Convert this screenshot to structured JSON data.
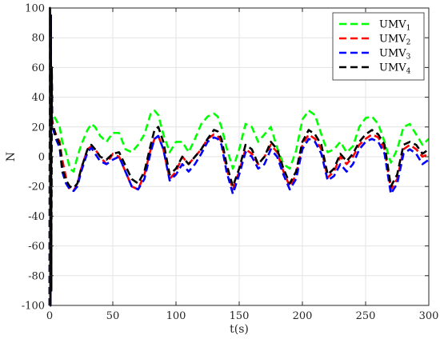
{
  "chart_data": {
    "type": "line",
    "title": "",
    "xlabel": "t(s)",
    "ylabel": "N",
    "xlim": [
      0,
      300
    ],
    "ylim": [
      -100,
      100
    ],
    "xticks": [
      0,
      50,
      100,
      150,
      200,
      250,
      300
    ],
    "yticks": [
      -100,
      -80,
      -60,
      -40,
      -20,
      0,
      20,
      40,
      60,
      80,
      100
    ],
    "grid": true,
    "legend_position": "top-right",
    "line_style": "dashed",
    "series": [
      {
        "name": "UMV",
        "subscript": "1",
        "color": "#00ff00",
        "x": [
          0,
          0.3,
          0.7,
          1.0,
          1.3,
          1.7,
          2.0,
          3,
          5,
          8,
          10,
          13,
          16,
          19,
          22,
          25,
          30,
          33,
          36,
          40,
          45,
          50,
          55,
          60,
          65,
          70,
          75,
          80,
          83,
          86,
          90,
          95,
          100,
          105,
          110,
          115,
          120,
          125,
          130,
          133,
          136,
          140,
          145,
          150,
          155,
          160,
          165,
          170,
          175,
          180,
          185,
          190,
          195,
          200,
          205,
          210,
          215,
          220,
          225,
          230,
          235,
          240,
          245,
          250,
          255,
          260,
          265,
          270,
          275,
          280,
          285,
          290,
          295,
          300
        ],
        "y": [
          -100,
          100,
          -100,
          95,
          -90,
          60,
          30,
          28,
          25,
          20,
          10,
          3,
          -8,
          -10,
          0,
          8,
          18,
          22,
          20,
          14,
          10,
          16,
          16,
          5,
          3,
          8,
          15,
          29,
          31,
          28,
          15,
          3,
          10,
          10,
          3,
          12,
          22,
          27,
          29,
          27,
          20,
          6,
          -8,
          5,
          22,
          20,
          10,
          15,
          20,
          6,
          -5,
          -8,
          4,
          25,
          31,
          28,
          15,
          3,
          5,
          10,
          3,
          7,
          20,
          26,
          27,
          22,
          10,
          -4,
          5,
          20,
          22,
          15,
          8,
          12
        ]
      },
      {
        "name": "UMV",
        "subscript": "2",
        "color": "#ff0000",
        "x": [
          0,
          0.3,
          0.7,
          1.0,
          1.3,
          1.7,
          2.0,
          3,
          5,
          8,
          10,
          13,
          16,
          19,
          22,
          25,
          30,
          33,
          36,
          40,
          45,
          50,
          55,
          60,
          65,
          70,
          75,
          80,
          83,
          86,
          90,
          95,
          100,
          105,
          110,
          115,
          120,
          125,
          130,
          133,
          136,
          140,
          145,
          150,
          155,
          160,
          165,
          170,
          175,
          180,
          185,
          190,
          195,
          200,
          205,
          210,
          215,
          220,
          225,
          230,
          235,
          240,
          245,
          250,
          255,
          260,
          265,
          270,
          275,
          280,
          285,
          290,
          295,
          300
        ],
        "y": [
          -100,
          100,
          -100,
          95,
          -90,
          60,
          25,
          20,
          15,
          10,
          -2,
          -14,
          -22,
          -23,
          -18,
          -8,
          5,
          7,
          5,
          0,
          -5,
          2,
          0,
          -10,
          -20,
          -22,
          -12,
          5,
          12,
          14,
          5,
          -15,
          -10,
          0,
          -5,
          0,
          5,
          12,
          15,
          14,
          10,
          -8,
          -22,
          -10,
          5,
          2,
          -5,
          0,
          8,
          3,
          -10,
          -20,
          -12,
          8,
          15,
          12,
          5,
          -14,
          -10,
          0,
          -5,
          0,
          8,
          12,
          15,
          13,
          5,
          -22,
          -15,
          5,
          8,
          5,
          0,
          2
        ]
      },
      {
        "name": "UMV",
        "subscript": "3",
        "color": "#0000ff",
        "x": [
          0,
          0.3,
          0.7,
          1.0,
          1.3,
          1.7,
          2.0,
          3,
          5,
          8,
          10,
          13,
          16,
          19,
          22,
          25,
          30,
          33,
          36,
          40,
          45,
          50,
          55,
          60,
          65,
          70,
          75,
          80,
          83,
          86,
          90,
          95,
          100,
          105,
          110,
          115,
          120,
          125,
          130,
          133,
          136,
          140,
          145,
          150,
          155,
          160,
          165,
          170,
          175,
          180,
          185,
          190,
          195,
          200,
          205,
          210,
          215,
          220,
          225,
          230,
          235,
          240,
          245,
          250,
          255,
          260,
          265,
          270,
          275,
          280,
          285,
          290,
          295,
          300
        ],
        "y": [
          -100,
          100,
          -100,
          95,
          -90,
          60,
          20,
          18,
          12,
          6,
          -10,
          -18,
          -22,
          -23,
          -20,
          -10,
          3,
          6,
          2,
          -3,
          -5,
          -2,
          0,
          -10,
          -20,
          -22,
          -15,
          3,
          12,
          14,
          5,
          -16,
          -12,
          -5,
          -10,
          -5,
          2,
          10,
          13,
          12,
          8,
          -10,
          -25,
          -12,
          3,
          0,
          -8,
          -5,
          5,
          0,
          -12,
          -22,
          -15,
          5,
          12,
          10,
          2,
          -16,
          -13,
          -5,
          -10,
          -5,
          5,
          10,
          12,
          10,
          2,
          -25,
          -18,
          2,
          5,
          2,
          -5,
          -2
        ]
      },
      {
        "name": "UMV",
        "subscript": "4",
        "color": "#000000",
        "x": [
          0,
          0.3,
          0.7,
          1.0,
          1.3,
          1.7,
          2.0,
          3,
          5,
          8,
          10,
          13,
          16,
          19,
          22,
          25,
          30,
          33,
          36,
          40,
          45,
          50,
          55,
          60,
          65,
          70,
          75,
          80,
          83,
          86,
          90,
          95,
          100,
          105,
          110,
          115,
          120,
          125,
          130,
          133,
          136,
          140,
          145,
          150,
          155,
          160,
          165,
          170,
          175,
          180,
          185,
          190,
          195,
          200,
          205,
          210,
          215,
          220,
          225,
          230,
          235,
          240,
          245,
          250,
          255,
          260,
          265,
          270,
          275,
          280,
          285,
          290,
          295,
          300
        ],
        "y": [
          -100,
          100,
          -100,
          95,
          -90,
          60,
          22,
          20,
          14,
          8,
          -8,
          -16,
          -20,
          -21,
          -18,
          -8,
          5,
          8,
          5,
          0,
          -2,
          2,
          3,
          -6,
          -15,
          -18,
          -10,
          8,
          18,
          20,
          10,
          -12,
          -8,
          0,
          -5,
          0,
          5,
          12,
          18,
          17,
          12,
          -5,
          -20,
          -8,
          8,
          5,
          -5,
          0,
          10,
          5,
          -8,
          -18,
          -10,
          10,
          18,
          15,
          8,
          -12,
          -8,
          2,
          -3,
          2,
          10,
          15,
          18,
          15,
          8,
          -20,
          -12,
          8,
          10,
          8,
          2,
          5
        ]
      }
    ]
  }
}
